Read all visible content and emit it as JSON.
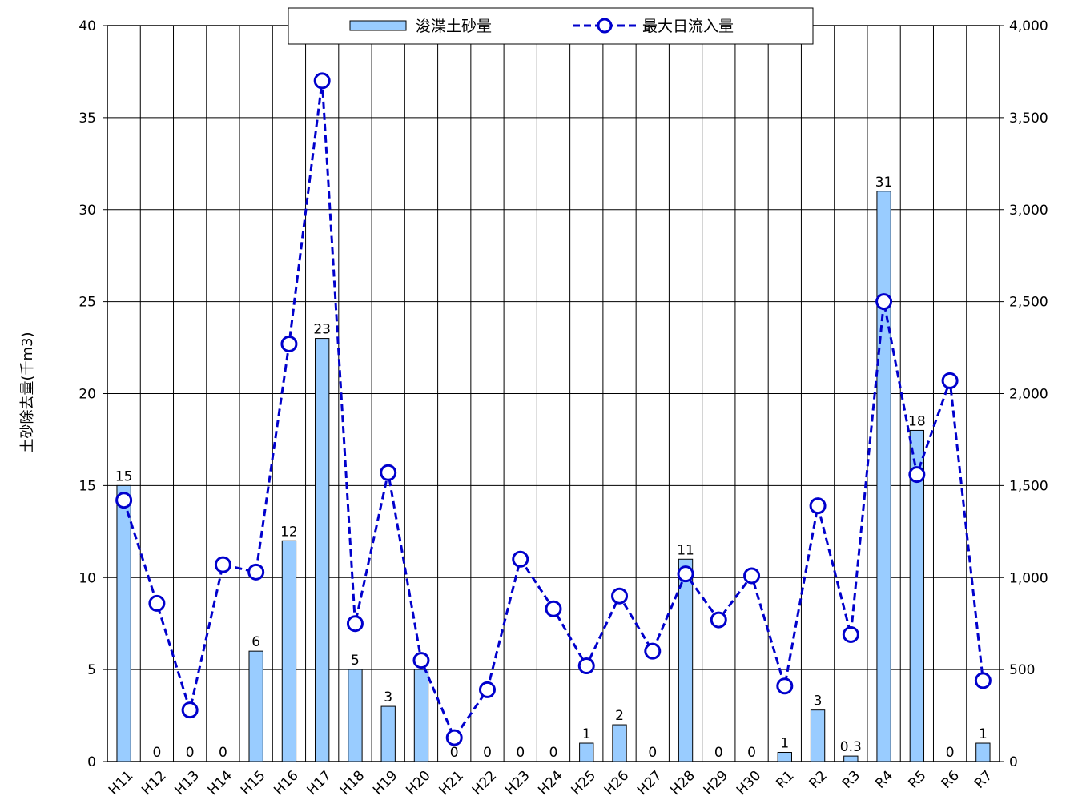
{
  "chart_data": {
    "type": "bar_line",
    "y_label": "土砂除去量(千m3)",
    "categories": [
      "H11",
      "H12",
      "H13",
      "H14",
      "H15",
      "H16",
      "H17",
      "H18",
      "H19",
      "H20",
      "H21",
      "H22",
      "H23",
      "H24",
      "H25",
      "H26",
      "H27",
      "H28",
      "H29",
      "H30",
      "R1",
      "R2",
      "R3",
      "R4",
      "R5",
      "R6",
      "R7"
    ],
    "series": [
      {
        "name": "浚渫土砂量",
        "type": "bar",
        "axis": "y",
        "color": "#99ccff",
        "values": [
          15,
          0,
          0,
          0,
          6,
          12,
          23,
          5,
          3,
          5,
          0,
          0,
          0,
          0,
          1,
          2,
          0,
          11,
          0,
          0,
          0.5,
          2.8,
          0.3,
          31,
          18,
          0,
          1
        ],
        "value_labels": [
          "15",
          "0",
          "0",
          "0",
          "6",
          "12",
          "23",
          "5",
          "3",
          "5",
          "0",
          "0",
          "0",
          "0",
          "1",
          "2",
          "0",
          "11",
          "0",
          "0",
          "1",
          "3",
          "0.3",
          "31",
          "18",
          "0",
          "1"
        ]
      },
      {
        "name": "最大日流入量",
        "type": "line",
        "axis": "y2",
        "color": "#0000cc",
        "values": [
          1420,
          860,
          280,
          1070,
          1030,
          2270,
          3700,
          750,
          1570,
          550,
          130,
          390,
          1100,
          830,
          520,
          900,
          600,
          1020,
          770,
          1010,
          410,
          1390,
          690,
          2500,
          1560,
          2070,
          440
        ]
      }
    ],
    "ylim": [
      0,
      40
    ],
    "yticks": [
      0,
      5,
      10,
      15,
      20,
      25,
      30,
      35,
      40
    ],
    "y2lim": [
      0,
      4000
    ],
    "y2ticks": [
      0,
      500,
      {
        "value": 1000,
        "label": "1,000"
      },
      {
        "value": 1500,
        "label": "1,500"
      },
      {
        "value": 2000,
        "label": "2,000"
      },
      {
        "value": 2500,
        "label": "2,500"
      },
      {
        "value": 3000,
        "label": "3,000"
      },
      {
        "value": 3500,
        "label": "3,500"
      },
      {
        "value": 4000,
        "label": "4,000"
      }
    ],
    "grid": true,
    "legend": "top"
  }
}
